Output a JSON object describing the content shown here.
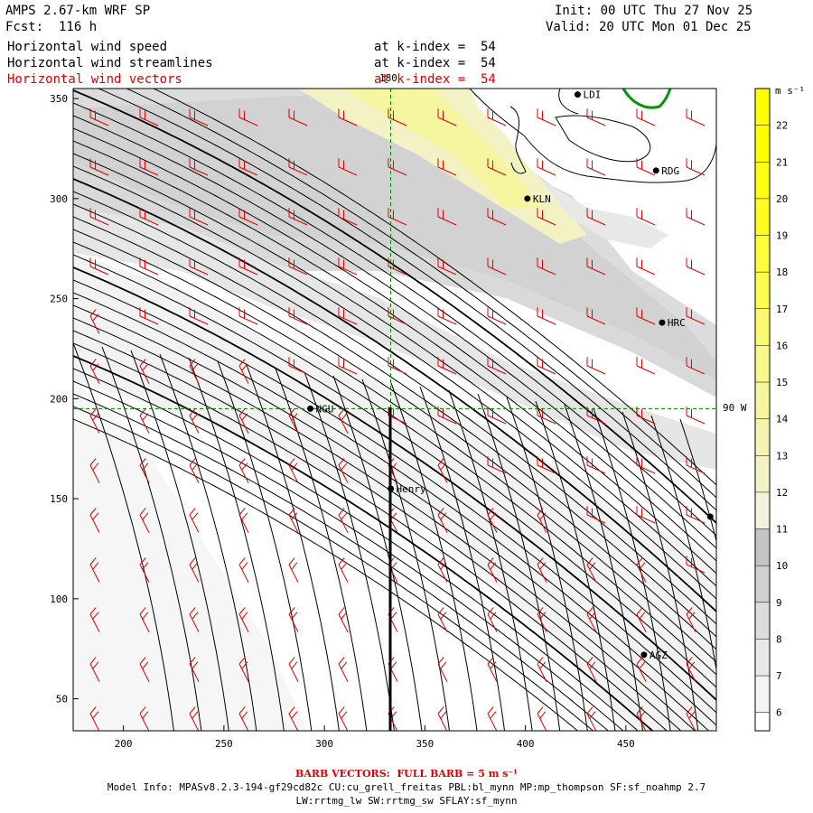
{
  "header": {
    "title": "AMPS 2.67-km WRF SP",
    "forecast": "Fcst:  116 h",
    "init": "Init: 00 UTC Thu 27 Nov 25",
    "valid": "Valid: 20 UTC Mon 01 Dec 25",
    "fields": [
      {
        "name": "Horizontal wind speed",
        "level": "at k-index =  54"
      },
      {
        "name": "Horizontal wind streamlines",
        "level": "at k-index =  54"
      },
      {
        "name": "Horizontal wind vectors",
        "level": "at k-index =  54"
      }
    ]
  },
  "chart_data": {
    "type": "contour-map",
    "xlim": [
      175,
      495
    ],
    "ylim": [
      34,
      355
    ],
    "x_ticks": [
      200,
      250,
      300,
      350,
      400,
      450
    ],
    "y_ticks": [
      50,
      100,
      150,
      200,
      250,
      300,
      350
    ],
    "meridian_label": "180",
    "parallel_label": "90 W",
    "meridian_x": 333,
    "parallel_y": 195,
    "colorbar": {
      "unit": "m s⁻¹",
      "levels": [
        6,
        7,
        8,
        9,
        10,
        11,
        12,
        13,
        14,
        15,
        16,
        17,
        18,
        19,
        20,
        21,
        22
      ],
      "colors": [
        "#ffffff",
        "#f4f4f4",
        "#e8e8e8",
        "#dcdcdc",
        "#d0d0d0",
        "#c4c4c4",
        "#f2f2dc",
        "#f2f2c4",
        "#f4f4b0",
        "#f6f69c",
        "#f8f888",
        "#fafa70",
        "#fbfb50",
        "#fcfc38",
        "#fdfd20",
        "#fefe10",
        "#ffff00"
      ]
    },
    "stations": [
      {
        "id": "KLN",
        "x": 401,
        "y": 300
      },
      {
        "id": "RDG",
        "x": 465,
        "y": 314
      },
      {
        "id": "HRC",
        "x": 468,
        "y": 238
      },
      {
        "id": "NGU",
        "x": 293,
        "y": 195
      },
      {
        "id": "Henry",
        "x": 333,
        "y": 155
      },
      {
        "id": "AGZ",
        "x": 459,
        "y": 72
      },
      {
        "id": "LDI",
        "x": 426,
        "y": 352
      },
      {
        "id": "",
        "x": 492,
        "y": 141
      }
    ]
  },
  "footer": {
    "barb_note": "BARB VECTORS:  FULL BARB = 5 m s⁻¹",
    "model_info": "Model Info: MPASv8.2.3-194-gf29cd82c CU:cu_grell_freitas PBL:bl_mynn MP:mp_thompson SF:sf_noahmp 2.7",
    "model_info2": "LW:rrtmg_lw SW:rrtmg_sw SFLAY:sf_mynn"
  }
}
